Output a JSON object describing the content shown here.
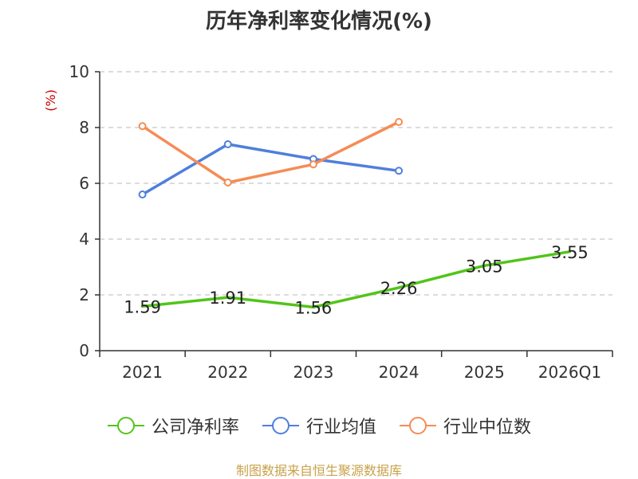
{
  "chart_data": {
    "type": "line",
    "title": "历年净利率变化情况(%)",
    "ylabel": "(%)",
    "categories": [
      "2021",
      "2022",
      "2023",
      "2024",
      "2025",
      "2026Q1"
    ],
    "ylim": [
      0,
      10
    ],
    "yticks": [
      0,
      2,
      4,
      6,
      8,
      10
    ],
    "grid": true,
    "legend_position": "bottom",
    "series": [
      {
        "name": "公司净利率",
        "color": "#52c41a",
        "values": [
          1.59,
          1.91,
          1.56,
          2.26,
          3.05,
          3.55
        ],
        "show_labels": true,
        "show_markers": false
      },
      {
        "name": "行业均值",
        "color": "#4f7fdc",
        "values": [
          5.6,
          7.4,
          6.87,
          6.45,
          null,
          null
        ],
        "show_labels": false,
        "show_markers": true
      },
      {
        "name": "行业中位数",
        "color": "#f58c55",
        "values": [
          8.05,
          6.03,
          6.68,
          8.2,
          null,
          null
        ],
        "show_labels": false,
        "show_markers": true
      }
    ]
  },
  "source": "制图数据来自恒生聚源数据库"
}
